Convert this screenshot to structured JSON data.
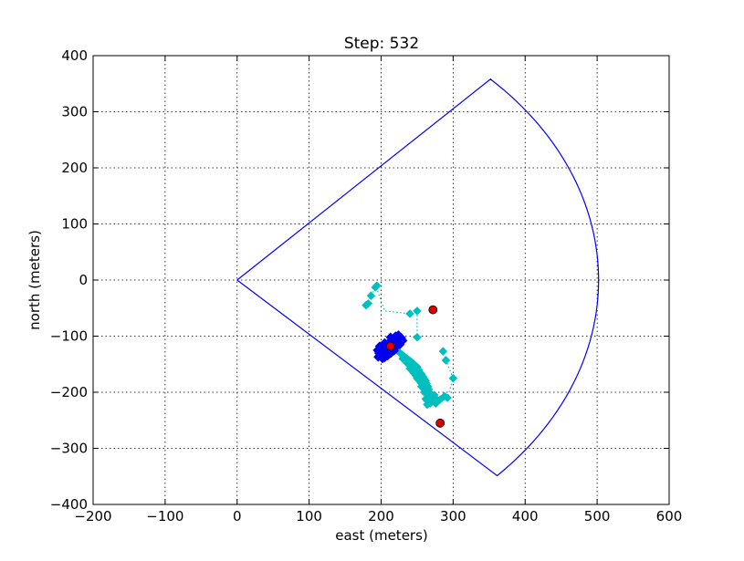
{
  "chart_data": {
    "type": "scatter",
    "title": "Step: 532",
    "xlabel": "east (meters)",
    "ylabel": "north (meters)",
    "xlim": [
      -200,
      600
    ],
    "ylim": [
      -400,
      400
    ],
    "xticks": [
      -200,
      -100,
      0,
      100,
      200,
      300,
      400,
      500,
      600
    ],
    "yticks": [
      -400,
      -300,
      -200,
      -100,
      0,
      100,
      200,
      300,
      400
    ],
    "xtick_labels": [
      "−200",
      "−100",
      "0",
      "100",
      "200",
      "300",
      "400",
      "500",
      "600"
    ],
    "ytick_labels": [
      "−400",
      "−300",
      "−200",
      "−100",
      "0",
      "100",
      "200",
      "300",
      "400"
    ],
    "grid": true,
    "colors": {
      "sector": "#0000ff",
      "blue_series": "#0000ee",
      "cyan_series": "#00bfbf",
      "red_series": "#dd0000"
    },
    "series": [
      {
        "kind": "sector-outline",
        "center": [
          0,
          0
        ],
        "radius": 502,
        "start_angle_deg": -44,
        "end_angle_deg": 45.5
      },
      {
        "kind": "dotted-track",
        "points": [
          [
            179,
            -45
          ],
          [
            186,
            -28
          ],
          [
            193,
            -12
          ],
          [
            205,
            -55
          ],
          [
            240,
            -60
          ],
          [
            250,
            -55
          ],
          [
            250,
            -102
          ]
        ]
      },
      {
        "kind": "dotted-track",
        "points": [
          [
            265,
            -210
          ],
          [
            280,
            -212
          ],
          [
            292,
            -210
          ],
          [
            300,
            -175
          ],
          [
            290,
            -143
          ],
          [
            286,
            -127
          ]
        ]
      },
      {
        "kind": "cyan-points",
        "points": [
          [
            179,
            -45
          ],
          [
            182,
            -42
          ],
          [
            186,
            -28
          ],
          [
            192,
            -13
          ],
          [
            194,
            -10
          ],
          [
            240,
            -60
          ],
          [
            250,
            -55
          ],
          [
            250,
            -102
          ],
          [
            286,
            -127
          ],
          [
            290,
            -143
          ],
          [
            300,
            -175
          ],
          [
            292,
            -210
          ],
          [
            288,
            -207
          ],
          [
            282,
            -213
          ]
        ]
      },
      {
        "kind": "cyan-cluster",
        "points": [
          [
            222,
            -125
          ],
          [
            226,
            -130
          ],
          [
            229,
            -133
          ],
          [
            232,
            -136
          ],
          [
            235,
            -139
          ],
          [
            238,
            -142
          ],
          [
            241,
            -145
          ],
          [
            244,
            -148
          ],
          [
            246,
            -152
          ],
          [
            248,
            -156
          ],
          [
            250,
            -155
          ],
          [
            252,
            -160
          ],
          [
            254,
            -165
          ],
          [
            256,
            -168
          ],
          [
            258,
            -172
          ],
          [
            260,
            -176
          ],
          [
            262,
            -180
          ],
          [
            263,
            -185
          ],
          [
            265,
            -190
          ],
          [
            266,
            -195
          ],
          [
            267,
            -200
          ],
          [
            268,
            -205
          ],
          [
            266,
            -210
          ],
          [
            264,
            -215
          ],
          [
            270,
            -215
          ],
          [
            272,
            -212
          ],
          [
            275,
            -218
          ],
          [
            278,
            -214
          ],
          [
            268,
            -220
          ],
          [
            262,
            -212
          ],
          [
            255,
            -183
          ],
          [
            250,
            -175
          ],
          [
            245,
            -165
          ],
          [
            240,
            -158
          ],
          [
            248,
            -170
          ],
          [
            256,
            -190
          ],
          [
            260,
            -200
          ],
          [
            246,
            -160
          ],
          [
            236,
            -148
          ],
          [
            230,
            -140
          ],
          [
            258,
            -185
          ],
          [
            270,
            -210
          ],
          [
            274,
            -205
          ],
          [
            264,
            -222
          ],
          [
            252,
            -178
          ],
          [
            262,
            -195
          ],
          [
            242,
            -150
          ],
          [
            276,
            -220
          ]
        ]
      },
      {
        "kind": "blue-cluster",
        "points": [
          [
            195,
            -125
          ],
          [
            197,
            -130
          ],
          [
            200,
            -135
          ],
          [
            205,
            -138
          ],
          [
            203,
            -122
          ],
          [
            207,
            -128
          ],
          [
            210,
            -118
          ],
          [
            212,
            -110
          ],
          [
            216,
            -105
          ],
          [
            220,
            -100
          ],
          [
            224,
            -98
          ],
          [
            228,
            -103
          ],
          [
            230,
            -108
          ],
          [
            226,
            -115
          ],
          [
            220,
            -120
          ],
          [
            214,
            -130
          ],
          [
            209,
            -135
          ],
          [
            202,
            -140
          ],
          [
            198,
            -118
          ],
          [
            205,
            -112
          ],
          [
            218,
            -112
          ],
          [
            222,
            -108
          ],
          [
            215,
            -118
          ],
          [
            210,
            -125
          ],
          [
            200,
            -128
          ],
          [
            196,
            -137
          ],
          [
            206,
            -132
          ],
          [
            213,
            -102
          ],
          [
            224,
            -104
          ],
          [
            218,
            -126
          ]
        ]
      },
      {
        "kind": "red-points",
        "points": [
          [
            272,
            -53
          ],
          [
            213,
            -118
          ],
          [
            282,
            -255
          ]
        ]
      }
    ]
  }
}
